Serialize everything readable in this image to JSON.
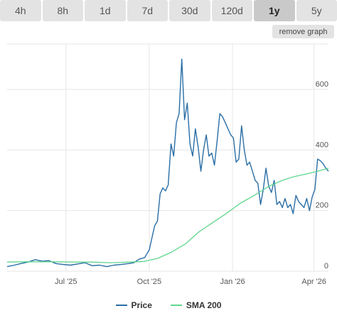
{
  "tabs": [
    {
      "label": "4h",
      "active": false
    },
    {
      "label": "8h",
      "active": false
    },
    {
      "label": "1d",
      "active": false
    },
    {
      "label": "7d",
      "active": false
    },
    {
      "label": "30d",
      "active": false
    },
    {
      "label": "120d",
      "active": false
    },
    {
      "label": "1y",
      "active": true
    },
    {
      "label": "5y",
      "active": false
    }
  ],
  "remove_graph_label": "remove graph",
  "colors": {
    "price": "#2a6ea6",
    "sma": "#5fd68e",
    "grid": "#e6e6e6",
    "axis_text": "#555555"
  },
  "chart_data": {
    "type": "line",
    "title": "",
    "xlabel": "",
    "ylabel": "",
    "grid": true,
    "legend_position": "bottom-center",
    "xlim": [
      "2025-04-27",
      "2026-04-17"
    ],
    "ylim": [
      0,
      750
    ],
    "x_ticks": [
      {
        "date": "2025-07-01",
        "label": "Jul '25"
      },
      {
        "date": "2025-10-01",
        "label": "Oct '25"
      },
      {
        "date": "2026-01-01",
        "label": "Jan '26"
      },
      {
        "date": "2026-04-01",
        "label": "Apr '26"
      }
    ],
    "y_ticks": [
      {
        "value": 0,
        "label": "0"
      },
      {
        "value": 200,
        "label": "200"
      },
      {
        "value": 400,
        "label": "400"
      },
      {
        "value": 600,
        "label": "600"
      }
    ],
    "series": [
      {
        "name": "Price",
        "color": "#2a6ea6",
        "x": [
          "2025-04-27",
          "2025-05-05",
          "2025-05-12",
          "2025-05-20",
          "2025-05-28",
          "2025-06-05",
          "2025-06-12",
          "2025-06-20",
          "2025-06-28",
          "2025-07-06",
          "2025-07-14",
          "2025-07-22",
          "2025-07-30",
          "2025-08-07",
          "2025-08-15",
          "2025-08-23",
          "2025-08-31",
          "2025-09-08",
          "2025-09-14",
          "2025-09-20",
          "2025-09-26",
          "2025-10-01",
          "2025-10-04",
          "2025-10-07",
          "2025-10-10",
          "2025-10-13",
          "2025-10-16",
          "2025-10-19",
          "2025-10-22",
          "2025-10-25",
          "2025-10-28",
          "2025-10-31",
          "2025-11-03",
          "2025-11-06",
          "2025-11-09",
          "2025-11-12",
          "2025-11-15",
          "2025-11-18",
          "2025-11-21",
          "2025-11-24",
          "2025-11-27",
          "2025-11-30",
          "2025-12-03",
          "2025-12-06",
          "2025-12-09",
          "2025-12-12",
          "2025-12-15",
          "2025-12-18",
          "2025-12-21",
          "2025-12-24",
          "2025-12-27",
          "2025-12-30",
          "2026-01-02",
          "2026-01-05",
          "2026-01-08",
          "2026-01-11",
          "2026-01-14",
          "2026-01-17",
          "2026-01-20",
          "2026-01-23",
          "2026-01-26",
          "2026-01-29",
          "2026-02-01",
          "2026-02-04",
          "2026-02-07",
          "2026-02-10",
          "2026-02-13",
          "2026-02-16",
          "2026-02-19",
          "2026-02-22",
          "2026-02-25",
          "2026-02-28",
          "2026-03-03",
          "2026-03-06",
          "2026-03-09",
          "2026-03-12",
          "2026-03-15",
          "2026-03-18",
          "2026-03-21",
          "2026-03-24",
          "2026-03-27",
          "2026-03-30",
          "2026-04-02",
          "2026-04-05",
          "2026-04-08",
          "2026-04-11",
          "2026-04-14",
          "2026-04-17"
        ],
        "values": [
          15,
          20,
          25,
          30,
          38,
          33,
          35,
          25,
          22,
          20,
          24,
          28,
          18,
          20,
          15,
          20,
          22,
          25,
          28,
          40,
          45,
          70,
          110,
          150,
          165,
          255,
          275,
          265,
          285,
          420,
          380,
          490,
          520,
          700,
          500,
          555,
          420,
          380,
          470,
          410,
          330,
          400,
          450,
          380,
          390,
          350,
          430,
          520,
          510,
          490,
          470,
          450,
          440,
          360,
          370,
          480,
          400,
          350,
          360,
          330,
          300,
          290,
          220,
          270,
          340,
          280,
          260,
          300,
          220,
          230,
          210,
          240,
          210,
          220,
          190,
          250,
          230,
          220,
          210,
          240,
          200,
          245,
          270,
          370,
          365,
          355,
          340,
          330
        ]
      },
      {
        "name": "SMA 200",
        "color": "#5fd68e",
        "x": [
          "2025-04-27",
          "2025-05-15",
          "2025-06-01",
          "2025-06-20",
          "2025-07-10",
          "2025-07-30",
          "2025-08-20",
          "2025-09-10",
          "2025-09-25",
          "2025-10-10",
          "2025-10-25",
          "2025-11-10",
          "2025-11-25",
          "2025-12-10",
          "2025-12-25",
          "2026-01-10",
          "2026-01-25",
          "2026-02-10",
          "2026-02-25",
          "2026-03-10",
          "2026-03-25",
          "2026-04-05",
          "2026-04-17"
        ],
        "values": [
          30,
          31,
          31,
          31,
          30,
          30,
          28,
          30,
          32,
          42,
          62,
          90,
          130,
          160,
          190,
          225,
          250,
          280,
          300,
          312,
          322,
          330,
          340
        ]
      }
    ]
  }
}
